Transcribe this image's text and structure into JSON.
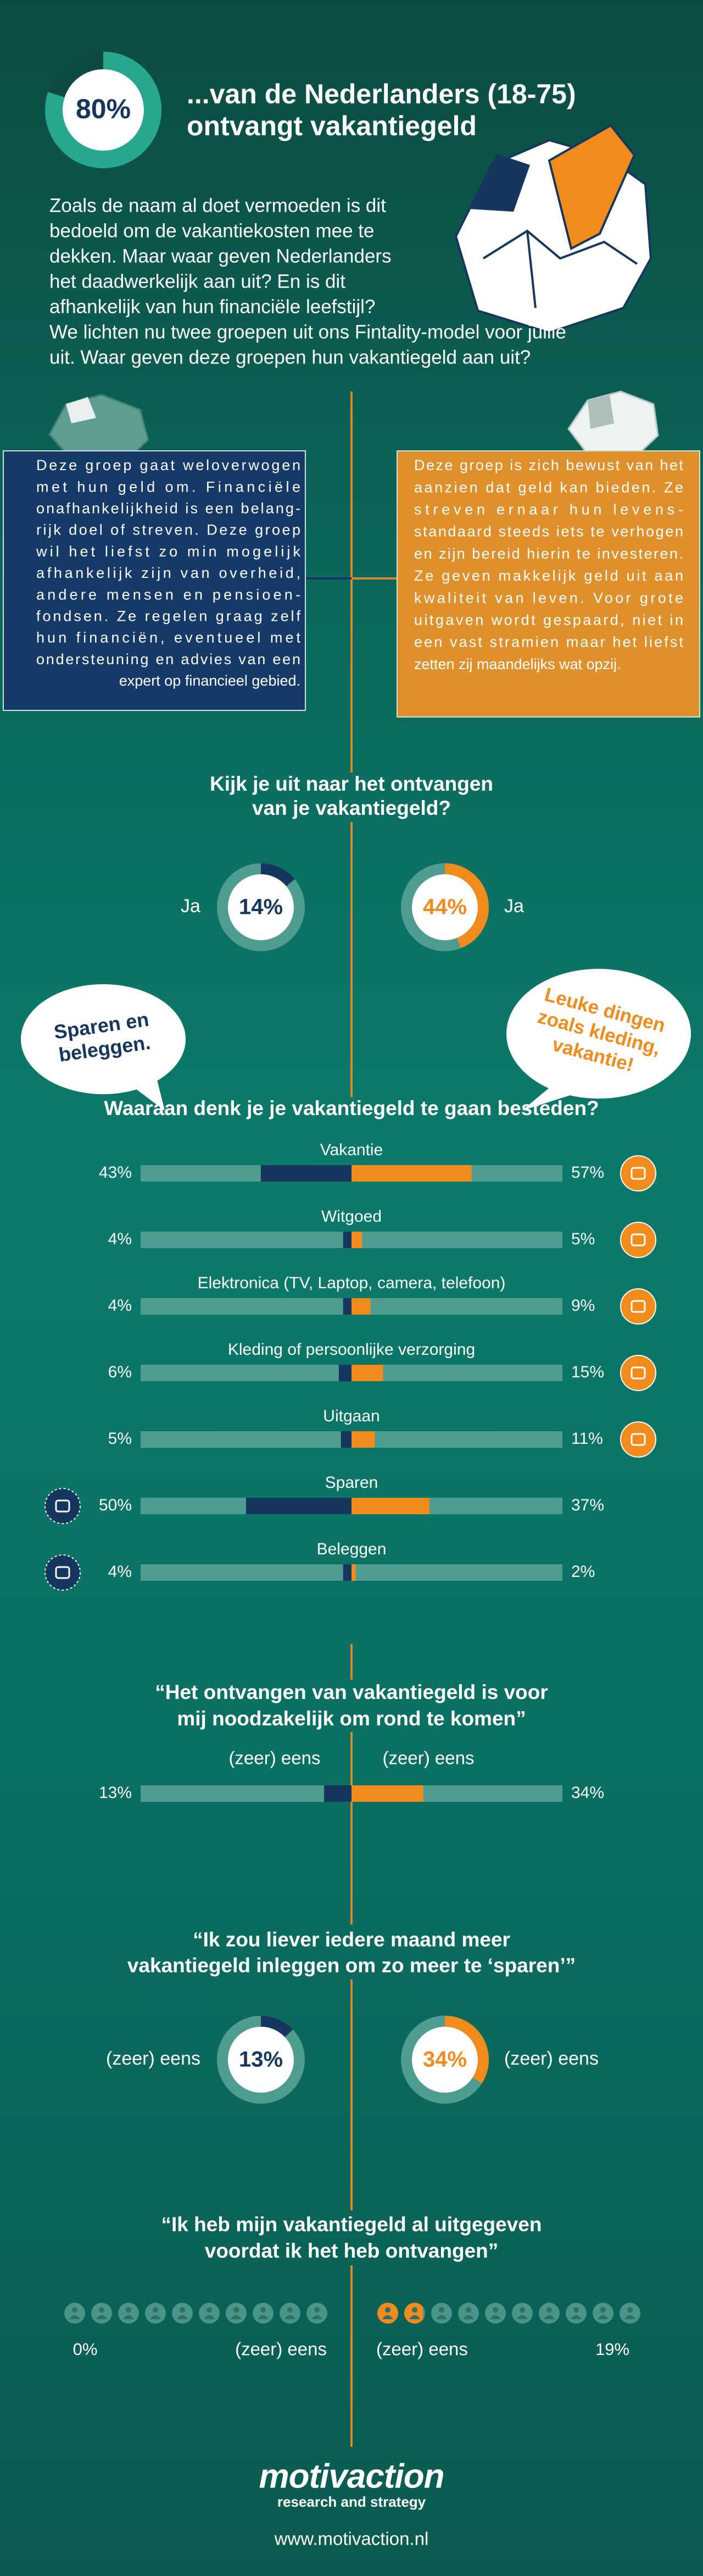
{
  "header": {
    "percent": {
      "value": 80,
      "label": "80%"
    },
    "title_lines": [
      "...van de Nederlanders (18-75)",
      "ontvangt vakantiegeld"
    ]
  },
  "intro_lines": [
    "Zoals de naam al doet vermoeden is dit",
    "bedoeld om de vakantiekosten mee te",
    "dekken. Maar waar geven Nederlanders",
    "het daadwerkelijk aan uit? En is dit",
    "afhankelijk van hun financiële leefstijl?",
    "We lichten nu twee groepen uit ons Fintality-model voor jullie",
    "uit. Waar geven deze groepen hun vakantiegeld aan uit?"
  ],
  "groups": [
    {
      "color": "#163a68",
      "lines": [
        "Deze groep gaat weloverwogen",
        "met hun geld om. Financiële",
        "onafhankelijkheid is een belang-",
        "rijk doel of streven. Deze groep",
        "wil het liefst zo min mogelijk",
        "afhankelijk zijn van overheid,",
        "andere mensen en pensioen-",
        "fondsen. Ze regelen graag zelf",
        "hun financiën, eventueel met",
        "ondersteuning en advies van een",
        "expert op financieel gebied."
      ]
    },
    {
      "color": "#e0902a",
      "lines": [
        "Deze groep is zich bewust van het",
        "aanzien dat geld kan bieden. Ze",
        "streven ernaar hun levens-",
        "standaard steeds iets te verhogen",
        "en zijn bereid hierin te investeren.",
        "Ze geven makkelijk geld uit aan",
        "kwaliteit van leven. Voor grote",
        "uitgaven wordt gespaard, niet in",
        "een vast stramien maar het liefst",
        "zetten zij maandelijks wat opzij."
      ]
    }
  ],
  "anticipation": {
    "question_lines": [
      "Kijk je uit naar het ontvangen",
      "van je vakantiegeld?"
    ],
    "left": {
      "answer": "Ja",
      "percent": {
        "value": 14,
        "label": "14%"
      }
    },
    "right": {
      "answer": "Ja",
      "percent": {
        "value": 44,
        "label": "44%"
      }
    }
  },
  "bubbles": {
    "left_lines": [
      "Sparen en",
      "beleggen."
    ],
    "right_lines": [
      "Leuke dingen",
      "zoals kleding,",
      "vakantie!"
    ]
  },
  "spending": {
    "question": "Waaraan denk je je vakantiegeld te gaan besteden?",
    "categories": [
      "Vakantie",
      "Witgoed",
      "Elektronica (TV, Laptop, camera, telefoon)",
      "Kleding of persoonlijke verzorging",
      "Uitgaan",
      "Sparen",
      "Beleggen"
    ],
    "series": [
      {
        "color": "#15365e",
        "values": [
          43,
          4,
          4,
          6,
          5,
          50,
          4
        ],
        "value_labels": [
          "43%",
          "4%",
          "4%",
          "6%",
          "5%",
          "50%",
          "4%"
        ]
      },
      {
        "color": "#f08b1c",
        "values": [
          57,
          5,
          9,
          15,
          11,
          37,
          2
        ],
        "value_labels": [
          "57%",
          "5%",
          "9%",
          "15%",
          "11%",
          "37%",
          "2%"
        ]
      }
    ]
  },
  "necessity": {
    "quote_lines": [
      "“Het ontvangen van vakantiegeld is voor",
      "mij noodzakelijk om rond te komen”"
    ],
    "left": {
      "answer": "(zeer) eens",
      "percent": {
        "value": 13,
        "label": "13%"
      }
    },
    "right": {
      "answer": "(zeer) eens",
      "percent": {
        "value": 34,
        "label": "34%"
      }
    }
  },
  "saving": {
    "quote_lines": [
      "“Ik zou liever iedere maand meer",
      "vakantiegeld inleggen om zo meer te ‘sparen’”"
    ],
    "left": {
      "answer": "(zeer) eens",
      "percent": {
        "value": 13,
        "label": "13%"
      }
    },
    "right": {
      "answer": "(zeer) eens",
      "percent": {
        "value": 34,
        "label": "34%"
      }
    }
  },
  "spent_early": {
    "quote_lines": [
      "“Ik heb mijn vakantiegeld al uitgegeven",
      "voordat ik het heb ontvangen”"
    ],
    "left": {
      "answer": "(zeer) eens",
      "percent": {
        "value": 0,
        "label": "0%"
      }
    },
    "right": {
      "answer": "(zeer) eens",
      "percent": {
        "value": 19,
        "label": "19%"
      }
    }
  },
  "footer": {
    "logo": "motivaction",
    "tagline": "research and strategy",
    "url": "www.motivaction.nl"
  }
}
